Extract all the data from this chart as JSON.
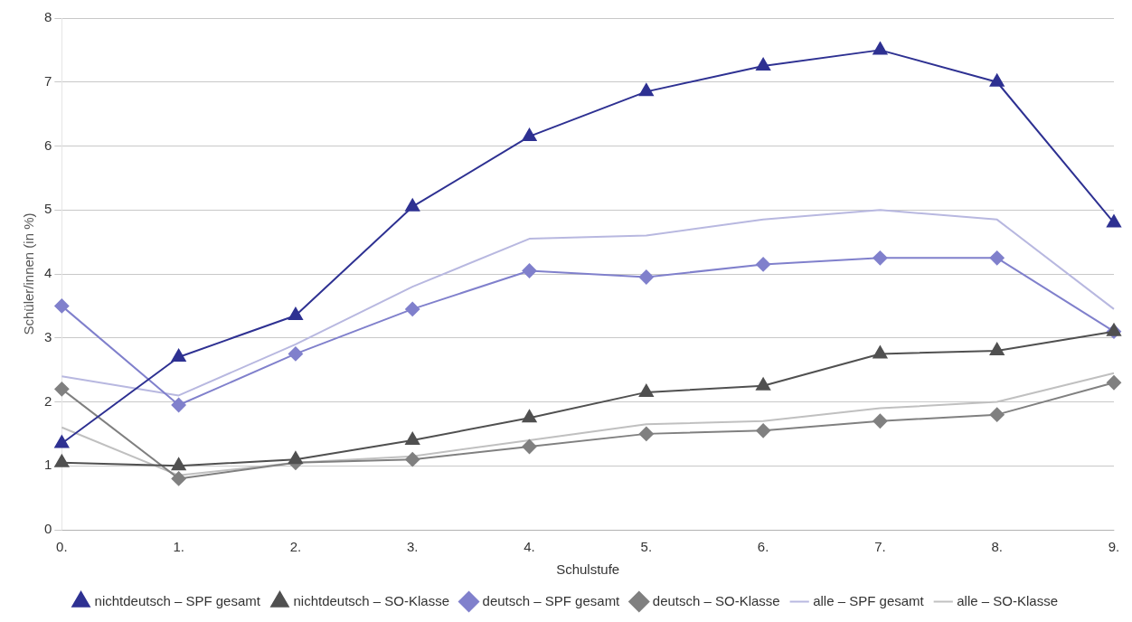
{
  "chart_data": {
    "type": "line",
    "xlabel": "Schulstufe",
    "ylabel": "Schüler/innen (in %)",
    "categories": [
      "0.",
      "1.",
      "2.",
      "3.",
      "4.",
      "5.",
      "6.",
      "7.",
      "8.",
      "9."
    ],
    "series": [
      {
        "name": "nichtdeutsch – SPF gesamt",
        "color": "#2e3192",
        "marker": "triangle",
        "values": [
          1.35,
          2.7,
          3.35,
          5.05,
          6.15,
          6.85,
          7.25,
          7.5,
          7.0,
          4.8
        ]
      },
      {
        "name": "nichtdeutsch – SO-Klasse",
        "color": "#505050",
        "marker": "triangle",
        "values": [
          1.05,
          1.0,
          1.1,
          1.4,
          1.75,
          2.15,
          2.25,
          2.75,
          2.8,
          3.1
        ]
      },
      {
        "name": "deutsch – SPF gesamt",
        "color": "#8080cc",
        "marker": "diamond",
        "values": [
          3.5,
          1.95,
          2.75,
          3.45,
          4.05,
          3.95,
          4.15,
          4.25,
          4.25,
          3.1
        ]
      },
      {
        "name": "deutsch – SO-Klasse",
        "color": "#808080",
        "marker": "diamond",
        "values": [
          2.2,
          0.8,
          1.05,
          1.1,
          1.3,
          1.5,
          1.55,
          1.7,
          1.8,
          2.3
        ]
      },
      {
        "name": "alle – SPF gesamt",
        "color": "#b8b8e0",
        "marker": "none",
        "values": [
          2.4,
          2.1,
          2.9,
          3.8,
          4.55,
          4.6,
          4.85,
          5.0,
          4.85,
          3.45
        ]
      },
      {
        "name": "alle – SO-Klasse",
        "color": "#c0c0c0",
        "marker": "none",
        "values": [
          1.6,
          0.85,
          1.05,
          1.15,
          1.4,
          1.65,
          1.7,
          1.9,
          2.0,
          2.45
        ]
      }
    ],
    "ylim": [
      0,
      8
    ],
    "yticks": [
      0,
      1,
      2,
      3,
      4,
      5,
      6,
      7,
      8
    ],
    "grid": "y",
    "legend": "bottom"
  }
}
